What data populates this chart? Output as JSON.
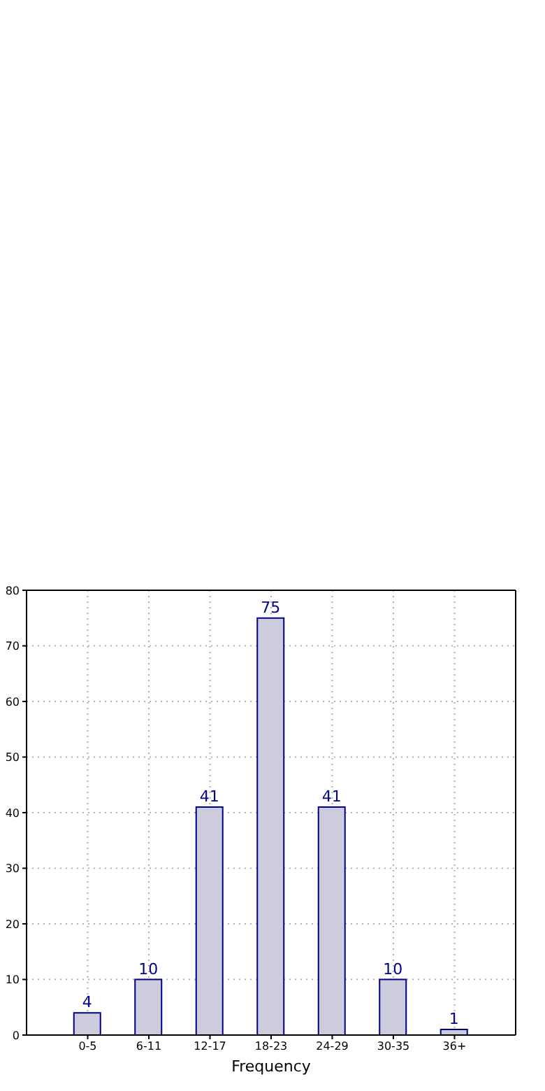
{
  "chart_data": {
    "type": "bar",
    "xlabel": "Frequency",
    "categories": [
      "0-5",
      "6-11",
      "12-17",
      "18-23",
      "24-29",
      "30-35",
      "36+"
    ],
    "values": [
      4,
      10,
      41,
      75,
      41,
      10,
      1
    ],
    "color": "#ccccdd",
    "ylim": [
      0,
      80
    ],
    "yticks": [
      0,
      10,
      20,
      30,
      40,
      50,
      60,
      70,
      80
    ],
    "grid": true,
    "data_labels": true
  }
}
